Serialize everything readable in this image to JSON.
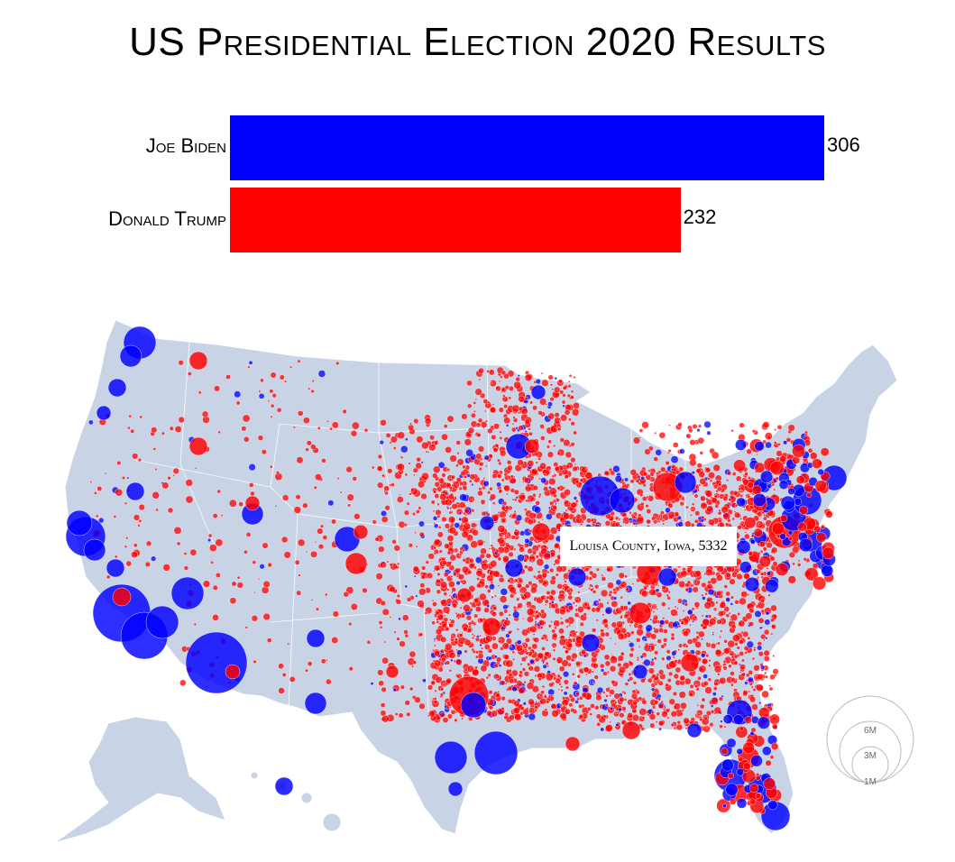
{
  "title": "US Presidential Election 2020 Results",
  "results": [
    {
      "name": "Joe Biden",
      "electoral_votes": 306,
      "color": "#0000ff"
    },
    {
      "name": "Donald Trump",
      "electoral_votes": 232,
      "color": "#ff0000"
    }
  ],
  "tooltip": "Louisa County, Iowa, 5332",
  "legend": {
    "labels": [
      "6M",
      "3M",
      "1M"
    ],
    "values": [
      6000000,
      3000000,
      1000000
    ]
  },
  "colors": {
    "land": "#c8d4e6",
    "border": "#ffffff",
    "dem": "#0000ff",
    "rep": "#ff0000"
  }
}
